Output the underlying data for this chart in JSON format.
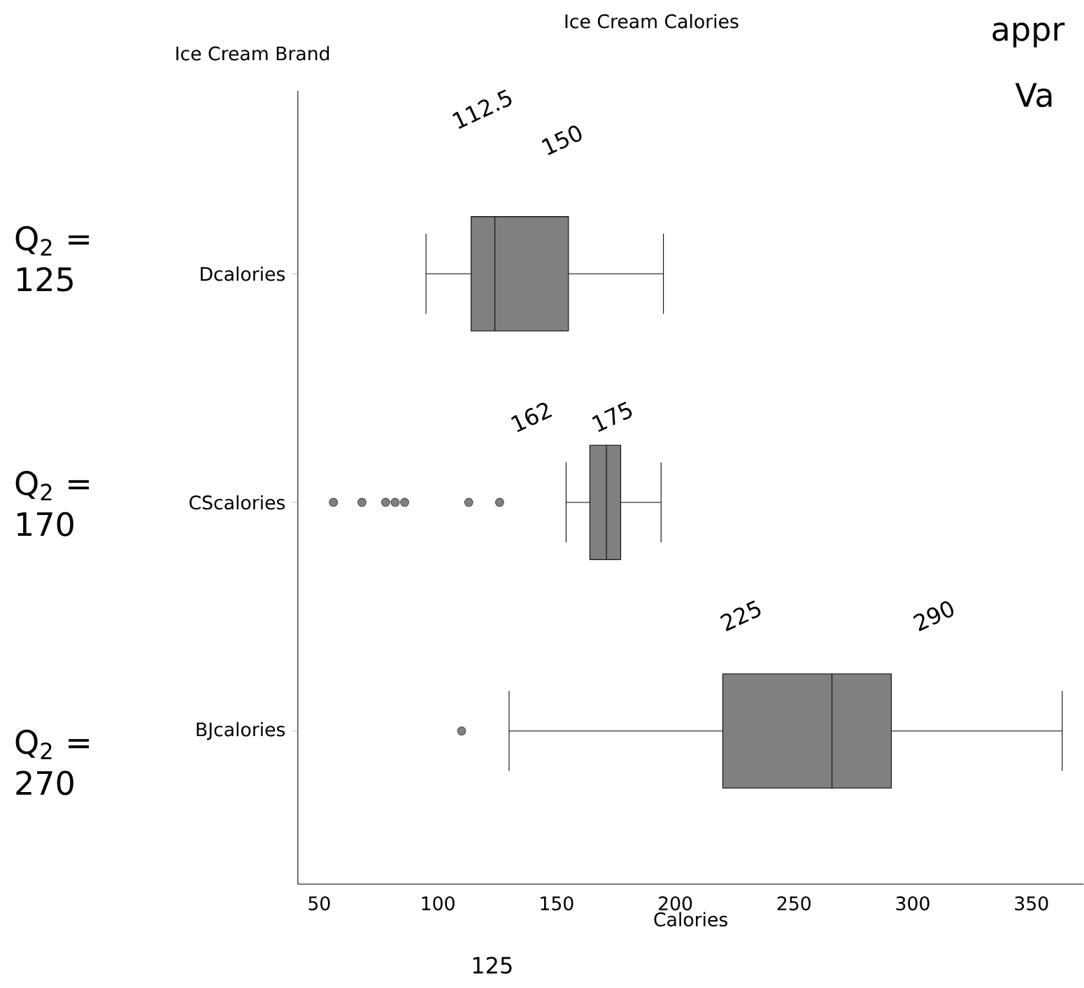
{
  "chart_data": {
    "type": "box",
    "title": "Ice Cream Calories",
    "xlabel": "Calories",
    "ylabel": "Ice Cream Brand",
    "orientation": "horizontal",
    "color": "#808080",
    "categories": [
      "Dcalories",
      "CScalories",
      "BJcalories"
    ],
    "boxes": [
      {
        "low": 95,
        "q1": 114,
        "median": 124,
        "q3": 155,
        "high": 195
      },
      {
        "low": 154,
        "q1": 164,
        "median": 171,
        "q3": 177,
        "high": 194,
        "outliers": [
          56,
          68,
          78,
          82,
          86,
          113,
          126
        ]
      },
      {
        "low": 130,
        "q1": 220,
        "median": 266,
        "q3": 291,
        "high": 363,
        "outliers": [
          110
        ]
      }
    ],
    "xlim": [
      41,
      372
    ],
    "xticks": [
      50,
      100,
      150,
      200,
      250,
      300,
      350
    ],
    "annotations": [
      "112.5",
      "150",
      "162",
      "175",
      "225",
      "290",
      "125",
      "Q$_{2}$ = 125",
      "Q$_{2}$ = 170",
      "Q$_{2}$ = 270",
      "appr",
      "Va"
    ]
  }
}
